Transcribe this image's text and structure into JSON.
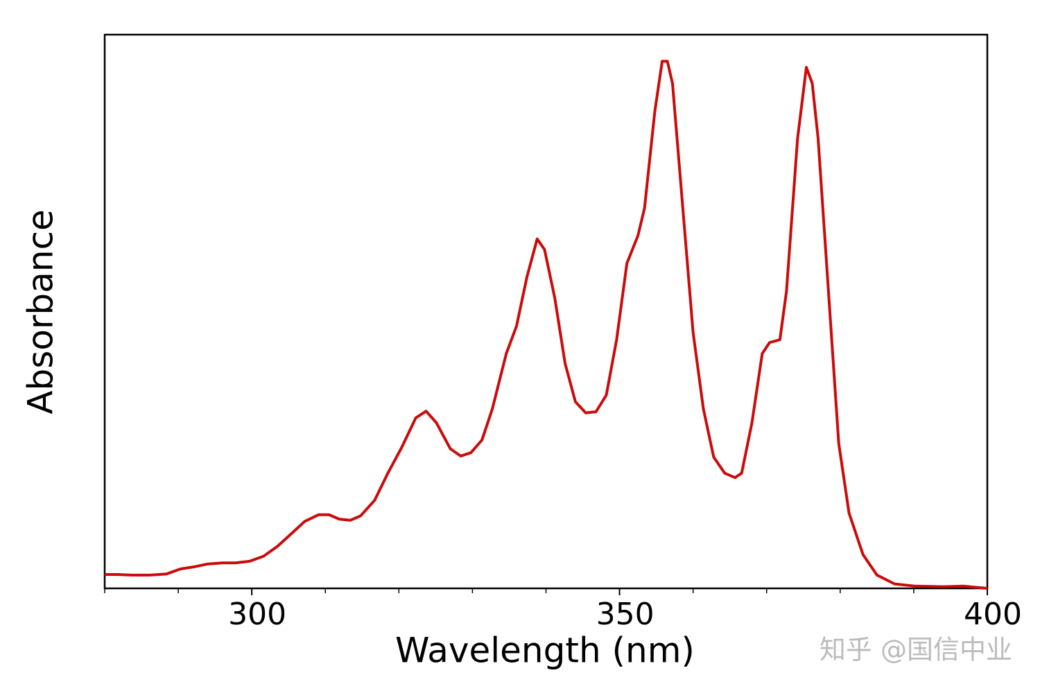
{
  "chart_data": {
    "type": "line",
    "xlabel": "Wavelength (nm)",
    "ylabel": "Absorbance",
    "watermark": "知乎 @国信中业",
    "xlim": [
      280,
      400
    ],
    "ylim": [
      0,
      1
    ],
    "xticks": [
      300,
      350,
      400
    ],
    "xminorticks": [
      280,
      290,
      310,
      320,
      330,
      340,
      360,
      370,
      380,
      390
    ],
    "x": [
      280,
      281.8,
      283.7,
      286.1,
      288.4,
      290.3,
      292.2,
      294,
      296,
      297.8,
      299.7,
      301.6,
      303.5,
      305.4,
      307.2,
      309.1,
      310.5,
      311.9,
      313.4,
      314.8,
      316.7,
      318.5,
      320.4,
      322.3,
      323.7,
      325.1,
      327,
      328.4,
      329.8,
      331.3,
      332.7,
      334.6,
      336,
      337.4,
      338.8,
      339.8,
      341.2,
      342.6,
      344,
      345.4,
      346.8,
      348.2,
      349.6,
      351,
      352.5,
      353.4,
      354.8,
      355.8,
      356.5,
      357.2,
      358.6,
      360,
      361.4,
      362.8,
      364.3,
      365.7,
      366.6,
      368,
      369.4,
      370.4,
      371.8,
      372.7,
      374.2,
      375.4,
      376.2,
      377,
      378.4,
      379.8,
      381.2,
      383.1,
      385,
      387.4,
      390.2,
      394,
      396.8,
      400
    ],
    "series": [
      {
        "name": "Absorbance",
        "color": "#cc0a0a",
        "values": [
          0.025,
          0.025,
          0.024,
          0.024,
          0.026,
          0.035,
          0.039,
          0.044,
          0.046,
          0.046,
          0.049,
          0.058,
          0.076,
          0.099,
          0.121,
          0.133,
          0.133,
          0.125,
          0.123,
          0.131,
          0.159,
          0.208,
          0.255,
          0.308,
          0.32,
          0.299,
          0.252,
          0.239,
          0.245,
          0.268,
          0.324,
          0.424,
          0.474,
          0.562,
          0.631,
          0.612,
          0.524,
          0.406,
          0.337,
          0.317,
          0.319,
          0.349,
          0.449,
          0.587,
          0.637,
          0.687,
          0.862,
          0.952,
          0.952,
          0.912,
          0.687,
          0.462,
          0.324,
          0.237,
          0.208,
          0.2,
          0.208,
          0.299,
          0.424,
          0.444,
          0.449,
          0.537,
          0.812,
          0.941,
          0.912,
          0.812,
          0.537,
          0.262,
          0.136,
          0.061,
          0.024,
          0.008,
          0.004,
          0.003,
          0.004,
          0
        ]
      }
    ]
  }
}
